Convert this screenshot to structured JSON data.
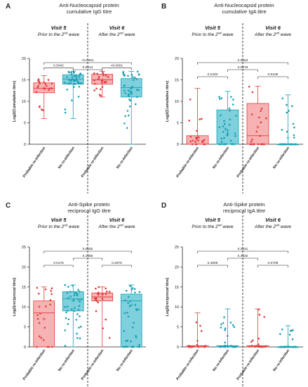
{
  "chart_data": [
    {
      "type": "box",
      "panel": "A",
      "title_lines": [
        "Anti-Nucleocapsid protein",
        "cumulative IgG titre"
      ],
      "ylabel": "Log2(Cumulative titre)",
      "ylim": [
        0,
        20
      ],
      "yticks": [
        0,
        5,
        10,
        15,
        20
      ],
      "visits": [
        {
          "title": "Visit 5",
          "subtitle_main": "Prior to the 2",
          "subtitle_sup": "nd",
          "subtitle_end": " wave"
        },
        {
          "title": "Visit 6",
          "subtitle_main": "After the 2",
          "subtitle_sup": "nd",
          "subtitle_end": " wave"
        }
      ],
      "categories": [
        "Probable re-infection",
        "No re-infection",
        "Probable re-infection",
        "No re-infection"
      ],
      "boxes": [
        {
          "min": 6,
          "q1": 12,
          "median": 13,
          "q3": 14.3,
          "max": 16,
          "mean": 13
        },
        {
          "min": 6,
          "q1": 14,
          "median": 15.2,
          "q3": 16.2,
          "max": 17,
          "mean": 15
        },
        {
          "min": 11,
          "q1": 14,
          "median": 15,
          "q3": 16.3,
          "max": 17,
          "mean": 15
        },
        {
          "min": 0,
          "q1": 11,
          "median": 13.2,
          "q3": 15.3,
          "max": 17,
          "mean": 13
        }
      ],
      "comparisons": [
        {
          "from": 0,
          "to": 1,
          "p": "0.0042",
          "level": 0
        },
        {
          "from": 2,
          "to": 3,
          "p": "<0.0001",
          "level": 0
        },
        {
          "from": 1,
          "to": 2,
          "p": "0.0013",
          "level": 1
        },
        {
          "from": 0,
          "to": 3,
          "p": "<0.0001",
          "level": 2
        }
      ]
    },
    {
      "type": "box",
      "panel": "B",
      "title_lines": [
        "Anti-Nucleocapsid protein",
        "cumulative IgA titre"
      ],
      "ylabel": "Log2(Cumulative titre)",
      "ylim": [
        0,
        20
      ],
      "yticks": [
        0,
        5,
        10,
        15,
        20
      ],
      "visits": [
        {
          "title": "Visit 5",
          "subtitle_main": "Prior to the 2",
          "subtitle_sup": "nd",
          "subtitle_end": " wave"
        },
        {
          "title": "Visit 6",
          "subtitle_main": "After the 2",
          "subtitle_sup": "nd",
          "subtitle_end": " wave"
        }
      ],
      "categories": [
        "Probable re-infection",
        "No re-infection",
        "Probable re-infection",
        "No re-infection"
      ],
      "boxes": [
        {
          "min": 0,
          "q1": 0,
          "median": 0,
          "q3": 2,
          "max": 13,
          "mean": 1.5
        },
        {
          "min": 0,
          "q1": 0,
          "median": 0,
          "q3": 8,
          "max": 12.3,
          "mean": 3.2
        },
        {
          "min": 0,
          "q1": 0,
          "median": 2,
          "q3": 9.5,
          "max": 13.5,
          "mean": 4
        },
        {
          "min": 0,
          "q1": 0,
          "median": 0,
          "q3": 0,
          "max": 11.5,
          "mean": 1.5
        }
      ],
      "comparisons": [
        {
          "from": 0,
          "to": 1,
          "p": "0.2433",
          "level": 0
        },
        {
          "from": 2,
          "to": 3,
          "p": "0.0106",
          "level": 0
        },
        {
          "from": 1,
          "to": 2,
          "p": "0.0678",
          "level": 1
        },
        {
          "from": 0,
          "to": 3,
          "p": "0.0183",
          "level": 2
        }
      ]
    },
    {
      "type": "box",
      "panel": "C",
      "title_lines": [
        "Anti-Spike protein",
        "reciprocal IgG titre"
      ],
      "ylabel": "Log2(reciprocal titre)",
      "ylim": [
        0,
        25
      ],
      "yticks": [
        0,
        5,
        10,
        15,
        20,
        25
      ],
      "visits": [
        {
          "title": "Visit 5",
          "subtitle_main": "Prior to the 2",
          "subtitle_sup": "nd",
          "subtitle_end": " wave"
        },
        {
          "title": "Visit 6",
          "subtitle_main": "After the 2",
          "subtitle_sup": "nd",
          "subtitle_end": " wave"
        }
      ],
      "categories": [
        "Probable re-infection",
        "No re-infection",
        "Probable re-infection",
        "No re-infection"
      ],
      "boxes": [
        {
          "min": 0,
          "q1": 0,
          "median": 8.5,
          "q3": 11.5,
          "max": 15,
          "mean": 7
        },
        {
          "min": 0,
          "q1": 9,
          "median": 12,
          "q3": 13.8,
          "max": 15.5,
          "mean": 11.5
        },
        {
          "min": 0,
          "q1": 11.5,
          "median": 12.5,
          "q3": 13.5,
          "max": 15,
          "mean": 12.5
        },
        {
          "min": 0,
          "q1": 0,
          "median": 11.5,
          "q3": 13.2,
          "max": 15.5,
          "mean": 10.5
        }
      ],
      "comparisons": [
        {
          "from": 0,
          "to": 1,
          "p": "0.0176",
          "level": 0
        },
        {
          "from": 2,
          "to": 3,
          "p": "0.2879",
          "level": 0
        },
        {
          "from": 1,
          "to": 2,
          "p": "0.1565",
          "level": 1
        },
        {
          "from": 0,
          "to": 3,
          "p": "0.0182",
          "level": 2
        }
      ]
    },
    {
      "type": "box",
      "panel": "D",
      "title_lines": [
        "Anti-Spike protein",
        "reciprocal IgA titre"
      ],
      "ylabel": "Log2(reciprocal titre)",
      "ylim": [
        0,
        25
      ],
      "yticks": [
        0,
        5,
        10,
        15,
        20,
        25
      ],
      "visits": [
        {
          "title": "Visit 5",
          "subtitle_main": "Prior to the 2",
          "subtitle_sup": "nd",
          "subtitle_end": " wave"
        },
        {
          "title": "Visit 6",
          "subtitle_main": "After the 2",
          "subtitle_sup": "nd",
          "subtitle_end": " wave"
        }
      ],
      "categories": [
        "Probable re-infection",
        "No re-infection",
        "Probable re-infection",
        "No re-infection"
      ],
      "boxes": [
        {
          "min": 0,
          "q1": 0,
          "median": 0,
          "q3": 0.3,
          "max": 8.5,
          "mean": 0.3
        },
        {
          "min": 0,
          "q1": 0,
          "median": 0,
          "q3": 0.3,
          "max": 9.5,
          "mean": 0.3
        },
        {
          "min": 0,
          "q1": 0,
          "median": 0,
          "q3": 0.3,
          "max": 9.5,
          "mean": 0.3
        },
        {
          "min": 0,
          "q1": 0,
          "median": 0,
          "q3": 0,
          "max": 5.3,
          "mean": 0.2
        }
      ],
      "comparisons": [
        {
          "from": 0,
          "to": 1,
          "p": "0.4809",
          "level": 0
        },
        {
          "from": 2,
          "to": 3,
          "p": "0.0708",
          "level": 0
        },
        {
          "from": 1,
          "to": 2,
          "p": "0.4632",
          "level": 1
        },
        {
          "from": 0,
          "to": 3,
          "p": "0.3531",
          "level": 2
        }
      ]
    }
  ],
  "colors": {
    "probable_fill": "#f7b3b3",
    "probable_stroke": "#e23b3b",
    "none_fill": "#7dd0dc",
    "none_stroke": "#1a9fb3",
    "axis": "#222222",
    "divider": "#222222"
  }
}
